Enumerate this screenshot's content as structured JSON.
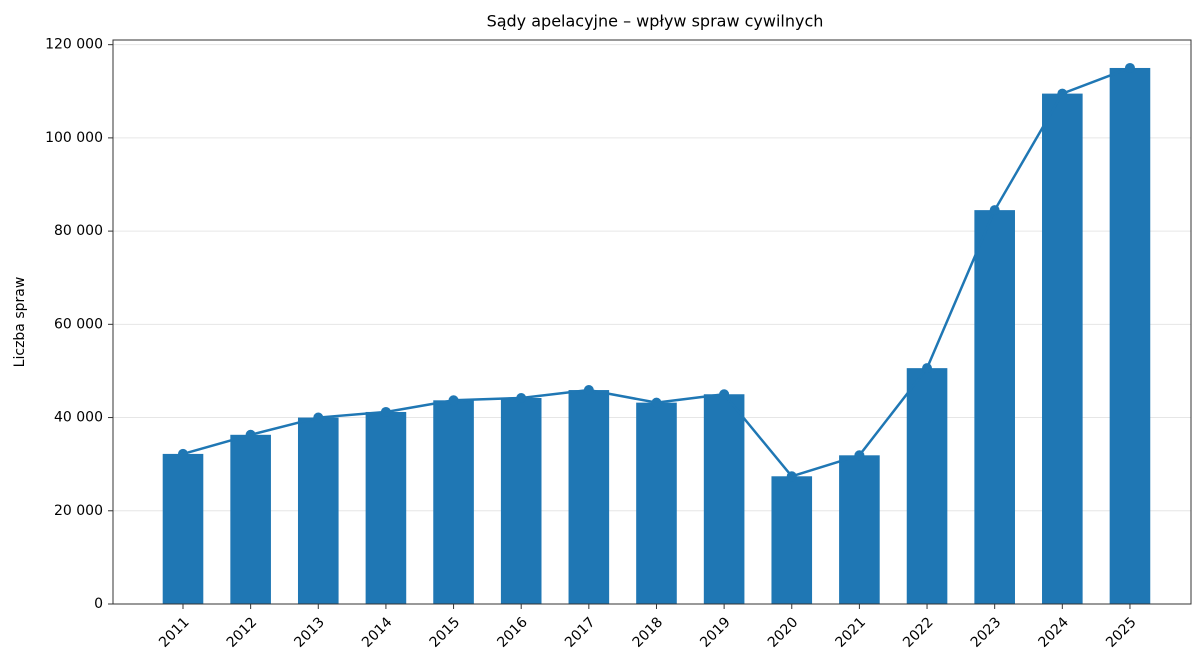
{
  "chart_data": {
    "type": "bar",
    "title": "Sądy apelacyjne – wpływ spraw cywilnych",
    "ylabel": "Liczba spraw",
    "categories": [
      "2011",
      "2012",
      "2013",
      "2014",
      "2015",
      "2016",
      "2017",
      "2018",
      "2019",
      "2020",
      "2021",
      "2022",
      "2023",
      "2024",
      "2025"
    ],
    "values": [
      32200,
      36300,
      40000,
      41200,
      43700,
      44200,
      45900,
      43200,
      45000,
      27400,
      31900,
      50600,
      84500,
      109500,
      115000
    ],
    "color": "#1f77b4",
    "line_overlay": true,
    "ylim": [
      0,
      121000
    ],
    "yticks": [
      0,
      {
        "value": 20000,
        "label": "20 000"
      },
      {
        "value": 40000,
        "label": "40 000"
      },
      {
        "value": 60000,
        "label": "60 000"
      },
      {
        "value": 80000,
        "label": "80 000"
      },
      {
        "value": 100000,
        "label": "100 000"
      },
      {
        "value": 120000,
        "label": "120 000"
      }
    ],
    "grid": true
  }
}
